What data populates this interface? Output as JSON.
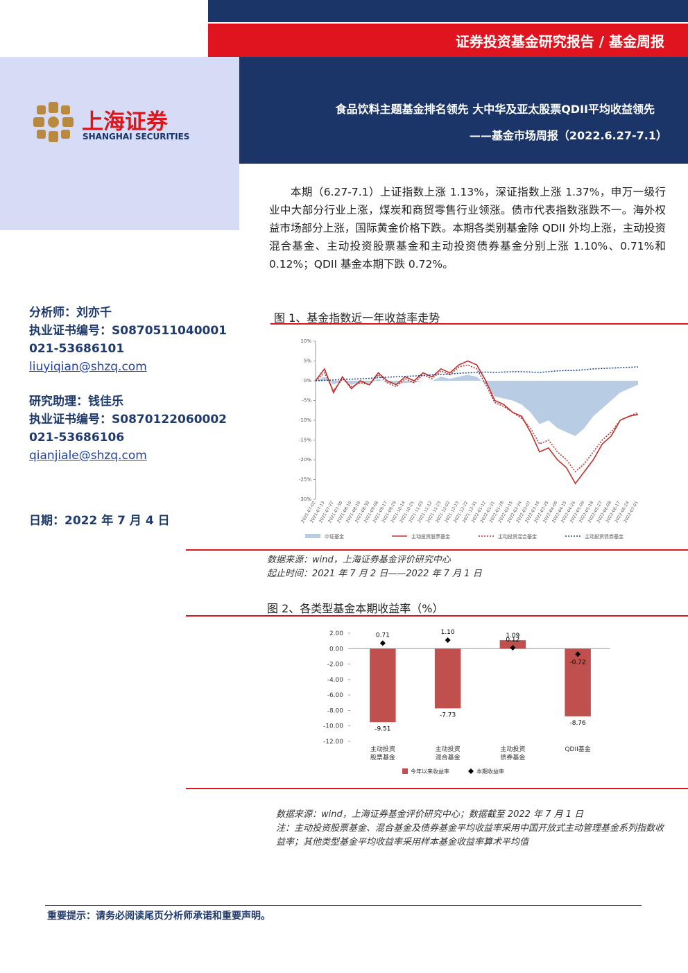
{
  "header": {
    "series_title": "证券投资基金研究报告 / 基金周报",
    "title": "食品饮料主题基金排名领先 大中华及亚太股票QDII平均收益领先",
    "subtitle": "——基金市场周报（2022.6.27-7.1）",
    "logo_cn": "上海证券",
    "logo_en": "SHANGHAI SECURITIES"
  },
  "sidebar": {
    "analyst": "分析师：刘亦千",
    "analyst_cert": "执业证书编号：S0870511040001",
    "analyst_phone": "021-53686101",
    "analyst_email": "liuyiqian@shzq.com",
    "assistant": "研究助理：钱佳乐",
    "assistant_cert": "执业证书编号：S0870122060002",
    "assistant_phone": "021-53686106",
    "assistant_email": "qianjiale@shzq.com",
    "date": "日期：2022 年 7 月 4 日"
  },
  "summary": "本期（6.27-7.1）上证指数上涨 1.13%，深证指数上涨 1.37%，申万一级行业中大部分行业上涨，煤炭和商贸零售行业领涨。债市代表指数涨跌不一。海外权益市场部分上涨，国际黄金价格下跌。本期各类别基金除 QDII 外均上涨，主动投资混合基金、主动投资股票基金和主动投资债券基金分别上涨 1.10%、0.71%和 0.12%；QDII 基金本期下跌 0.72%。",
  "figure1": {
    "caption": "图 1、基金指数近一年收益率走势",
    "source": "数据来源：wind，上海证券基金评价研究中心",
    "period": "起止时间：2021 年 7 月 2 日——2022 年 7 月 1 日"
  },
  "figure2": {
    "caption": "图 2、各类型基金本期收益率（%）",
    "source": "数据来源：wind，上海证券基金评价研究中心；数据截至 2022 年 7 月 1 日",
    "note": "注：主动投资股票基金、混合基金及债券基金平均收益率采用中国开放式主动管理基金系列指数收益率；其他类型基金平均收益率采用样本基金收益率算术平均值"
  },
  "footer": "重要提示：请务必阅读尾页分析师承诺和重要声明。",
  "chart_data": [
    {
      "type": "line",
      "x": [
        "2021-07-02",
        "2021-07-13",
        "2021-07-22",
        "2021-07-30",
        "2021-08-10",
        "2021-08-19",
        "2021-08-30",
        "2021-09-08",
        "2021-09-17",
        "2021-09-29",
        "2021-10-14",
        "2021-10-25",
        "2021-11-03",
        "2021-11-12",
        "2021-11-23",
        "2021-12-02",
        "2021-12-13",
        "2021-12-22",
        "2021-12-31",
        "2022-01-12",
        "2022-01-21",
        "2022-01-28",
        "2022-02-15",
        "2022-02-24",
        "2022-03-07",
        "2022-03-16",
        "2022-03-25",
        "2022-04-06",
        "2022-04-15",
        "2022-04-26",
        "2022-05-09",
        "2022-05-18",
        "2022-05-27",
        "2022-06-08",
        "2022-06-17",
        "2022-06-24",
        "2022-07-01"
      ],
      "ylim": [
        -30,
        10
      ],
      "yticks": [
        {
          "value": 10,
          "label": "10%"
        },
        {
          "value": 5,
          "label": "5%"
        },
        {
          "value": 0,
          "label": "0%"
        },
        {
          "value": -5,
          "label": "-5%"
        },
        {
          "value": -10,
          "label": "-10%"
        },
        {
          "value": -15,
          "label": "-15%"
        },
        {
          "value": -20,
          "label": "-20%"
        },
        {
          "value": -25,
          "label": "-25%"
        },
        {
          "value": -30,
          "label": "-30%"
        }
      ],
      "series": [
        {
          "name": "中证基金",
          "color": "#b8cce4",
          "area": true,
          "dash": false,
          "values": [
            0,
            1,
            -1,
            0,
            -1,
            -0.5,
            -0.5,
            0.5,
            -0.5,
            -1,
            -0.5,
            -0.5,
            0,
            0,
            1,
            0.5,
            1,
            1.5,
            1,
            -1,
            -4,
            -4.5,
            -5,
            -6,
            -8,
            -11,
            -10,
            -12,
            -13,
            -14,
            -12,
            -9,
            -7,
            -5,
            -3,
            -2,
            -1
          ]
        },
        {
          "name": "主动投资股票基金",
          "color": "#c0302b",
          "area": false,
          "dash": false,
          "values": [
            0,
            3,
            -3,
            1,
            -2,
            0,
            -1,
            2,
            0,
            -1,
            1,
            0,
            2,
            1,
            3,
            2,
            4,
            5,
            4,
            0,
            -5,
            -6,
            -8,
            -9,
            -13,
            -18,
            -17,
            -20,
            -22,
            -26,
            -23,
            -20,
            -16,
            -14,
            -10,
            -9,
            -8.5
          ]
        },
        {
          "name": "主动投资混合基金",
          "color": "#c0302b",
          "area": false,
          "dash": true,
          "values": [
            0,
            2,
            -2.5,
            0.5,
            -1.5,
            -0.5,
            -1,
            1.5,
            -0.5,
            -1.5,
            0.5,
            -0.5,
            1.5,
            0.5,
            2.5,
            1.5,
            3.5,
            4,
            3,
            -1,
            -5.5,
            -6.5,
            -8,
            -9.5,
            -12,
            -16,
            -15,
            -18,
            -20,
            -23,
            -21,
            -18,
            -15,
            -13,
            -10,
            -9,
            -8
          ]
        },
        {
          "name": "主动投资债券基金",
          "color": "#1f4e8c",
          "area": false,
          "dash": true,
          "values": [
            0,
            0.1,
            0.2,
            0.3,
            0.4,
            0.5,
            0.6,
            0.8,
            0.9,
            1,
            1.1,
            1.2,
            1.3,
            1.5,
            1.6,
            1.7,
            1.9,
            2,
            2.1,
            2.2,
            2.1,
            2.2,
            2.3,
            2.3,
            2.2,
            2.1,
            2.3,
            2.5,
            2.6,
            2.6,
            2.8,
            3,
            3.1,
            3.2,
            3.3,
            3.4,
            3.5
          ]
        }
      ]
    },
    {
      "type": "bar",
      "categories": [
        [
          "主动投资",
          "股票基金"
        ],
        [
          "主动投资",
          "混合基金"
        ],
        [
          "主动投资",
          "债券基金"
        ],
        [
          "QDII基金"
        ]
      ],
      "ylim": [
        -12,
        2
      ],
      "yticks": [
        {
          "value": 2,
          "label": "2.00"
        },
        {
          "value": 0,
          "label": "0.00"
        },
        {
          "value": -2,
          "label": "-2.00"
        },
        {
          "value": -4,
          "label": "-4.00"
        },
        {
          "value": -6,
          "label": "-6.00"
        },
        {
          "value": -8,
          "label": "-8.00"
        },
        {
          "value": -10,
          "label": "-10.00"
        },
        {
          "value": -12,
          "label": "-12.00"
        }
      ],
      "series": [
        {
          "name": "今年以来收益率",
          "type": "bar",
          "color": "#c0504d",
          "values": [
            -9.51,
            -7.73,
            1.09,
            -8.76
          ],
          "value_labels": [
            "-9.51",
            "-7.73",
            "1.09",
            "-8.76"
          ]
        },
        {
          "name": "本期收益率",
          "type": "scatter",
          "color": "#000000",
          "values": [
            0.71,
            1.1,
            0.12,
            -0.72
          ],
          "value_labels": [
            "0.71",
            "1.10",
            "0.12",
            "-0.72"
          ]
        }
      ]
    }
  ]
}
